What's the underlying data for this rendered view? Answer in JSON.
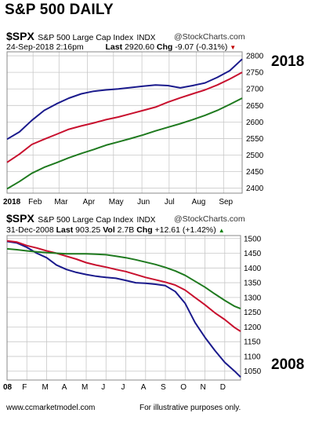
{
  "page": {
    "title": "S&P 500 DAILY",
    "footer_left": "www.ccmarketmodel.com",
    "footer_right": "For illustrative purposes only."
  },
  "panels": [
    {
      "symbol": "$SPX",
      "name": "S&P 500 Large Cap Index",
      "exchange": "INDX",
      "brand": "@StockCharts.com",
      "date": "24-Sep-2018 2:16pm",
      "last_label": "Last",
      "last_value": "2920.60",
      "chg_label": "Chg",
      "chg_value": "-9.07 (-0.31%)",
      "chg_arrow": "▼",
      "year_label": "2018"
    },
    {
      "symbol": "$SPX",
      "name": "S&P 500 Large Cap Index",
      "exchange": "INDX",
      "brand": "@StockCharts.com",
      "date": "31-Dec-2008",
      "last_label": "Last",
      "last_value": "903.25",
      "vol_label": "Vol",
      "vol_value": "2.7B",
      "chg_label": "Chg",
      "chg_value": "+12.61 (+1.42%)",
      "chg_arrow": "▲",
      "year_label": "2008"
    }
  ],
  "colors": {
    "line_blue": "#1a1a8c",
    "line_red": "#c8102e",
    "line_green": "#1f7a1f",
    "grid": "#c8c8c8",
    "arrow_red": "#c00000",
    "arrow_green": "#008000"
  },
  "chart_data": [
    {
      "type": "line",
      "xlabel": "",
      "ylabel": "",
      "x_ticks": [
        "2018",
        "Feb",
        "Mar",
        "Apr",
        "May",
        "Jun",
        "Jul",
        "Aug",
        "Sep"
      ],
      "y_ticks": [
        2400,
        2450,
        2500,
        2550,
        2600,
        2650,
        2700,
        2750,
        2800
      ],
      "ylim": [
        2385,
        2812
      ],
      "x_range": [
        0,
        38
      ],
      "grid": true,
      "legend": "none",
      "series": [
        {
          "x": [
            0,
            2,
            4,
            6,
            8,
            10,
            12,
            14,
            16,
            18,
            20,
            22,
            24,
            26,
            28,
            30,
            32,
            34,
            36,
            38
          ],
          "values": [
            2548,
            2570,
            2605,
            2635,
            2655,
            2672,
            2685,
            2693,
            2697,
            2700,
            2704,
            2708,
            2712,
            2710,
            2703,
            2710,
            2718,
            2735,
            2755,
            2790
          ]
        },
        {
          "x": [
            0,
            2,
            4,
            6,
            8,
            10,
            12,
            14,
            16,
            18,
            20,
            22,
            24,
            26,
            28,
            30,
            32,
            34,
            36,
            38
          ],
          "values": [
            2478,
            2503,
            2532,
            2548,
            2563,
            2578,
            2588,
            2597,
            2607,
            2615,
            2625,
            2635,
            2645,
            2660,
            2673,
            2685,
            2697,
            2712,
            2730,
            2750
          ]
        },
        {
          "x": [
            0,
            2,
            4,
            6,
            8,
            10,
            12,
            14,
            16,
            18,
            20,
            22,
            24,
            26,
            28,
            30,
            32,
            34,
            36,
            38
          ],
          "values": [
            2398,
            2420,
            2445,
            2463,
            2477,
            2492,
            2505,
            2517,
            2530,
            2540,
            2550,
            2561,
            2573,
            2584,
            2595,
            2607,
            2620,
            2635,
            2653,
            2672
          ]
        }
      ]
    },
    {
      "type": "line",
      "xlabel": "",
      "ylabel": "",
      "x_ticks": [
        "08",
        "F",
        "M",
        "A",
        "M",
        "J",
        "J",
        "A",
        "S",
        "O",
        "N",
        "D"
      ],
      "y_ticks": [
        1050,
        1100,
        1150,
        1200,
        1250,
        1300,
        1350,
        1400,
        1450,
        1500
      ],
      "ylim": [
        1020,
        1510
      ],
      "x_range": [
        0,
        11.8
      ],
      "grid": true,
      "legend": "none",
      "series": [
        {
          "x": [
            0,
            0.5,
            1,
            1.5,
            2,
            2.5,
            3,
            3.5,
            4,
            4.5,
            5,
            5.5,
            6,
            6.5,
            7,
            7.5,
            8,
            8.5,
            9,
            9.5,
            10,
            10.5,
            11,
            11.5,
            11.8
          ],
          "values": [
            1490,
            1485,
            1470,
            1450,
            1435,
            1410,
            1395,
            1385,
            1378,
            1372,
            1368,
            1365,
            1358,
            1350,
            1348,
            1345,
            1340,
            1320,
            1280,
            1215,
            1165,
            1120,
            1080,
            1050,
            1030
          ]
        },
        {
          "x": [
            0,
            0.5,
            1,
            1.5,
            2,
            2.5,
            3,
            3.5,
            4,
            4.5,
            5,
            5.5,
            6,
            6.5,
            7,
            7.5,
            8,
            8.5,
            9,
            9.5,
            10,
            10.5,
            11,
            11.5,
            11.8
          ],
          "values": [
            1492,
            1488,
            1476,
            1468,
            1458,
            1450,
            1440,
            1430,
            1418,
            1410,
            1403,
            1395,
            1388,
            1378,
            1368,
            1360,
            1352,
            1342,
            1325,
            1300,
            1275,
            1248,
            1225,
            1198,
            1185
          ]
        },
        {
          "x": [
            0,
            0.5,
            1,
            1.5,
            2,
            2.5,
            3,
            3.5,
            4,
            4.5,
            5,
            5.5,
            6,
            6.5,
            7,
            7.5,
            8,
            8.5,
            9,
            9.5,
            10,
            10.5,
            11,
            11.5,
            11.8
          ],
          "values": [
            1465,
            1462,
            1458,
            1455,
            1452,
            1450,
            1448,
            1448,
            1448,
            1447,
            1445,
            1440,
            1435,
            1428,
            1420,
            1412,
            1402,
            1390,
            1375,
            1355,
            1335,
            1312,
            1290,
            1270,
            1262
          ]
        }
      ]
    }
  ]
}
